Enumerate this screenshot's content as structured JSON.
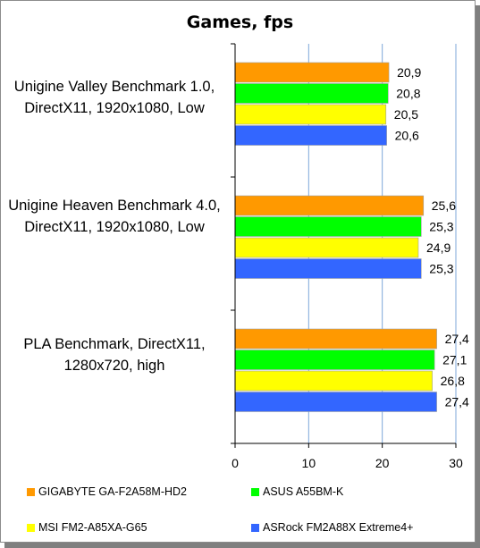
{
  "chart_data": {
    "type": "bar",
    "orientation": "horizontal",
    "title": "Games,  fps",
    "categories": [
      "Unigine Valley Benchmark 1.0, DirectX11, 1920x1080, Low",
      "Unigine Heaven Benchmark 4.0, DirectX11, 1920x1080, Low",
      "PLA Benchmark, DirectX11, 1280x720, high"
    ],
    "series": [
      {
        "name": "GIGABYTE GA-F2A58M-HD2",
        "color": "#ff9900",
        "values": [
          20.9,
          25.6,
          27.4
        ],
        "labels": [
          "20,9",
          "25,6",
          "27,4"
        ]
      },
      {
        "name": "ASUS A55BM-K",
        "color": "#00ff00",
        "values": [
          20.8,
          25.3,
          27.1
        ],
        "labels": [
          "20,8",
          "25,3",
          "27,1"
        ]
      },
      {
        "name": "MSI FM2-A85XA-G65",
        "color": "#ffff00",
        "values": [
          20.5,
          24.9,
          26.8
        ],
        "labels": [
          "20,5",
          "24,9",
          "26,8"
        ]
      },
      {
        "name": "ASRock FM2A88X Extreme4+",
        "color": "#3366ff",
        "values": [
          20.6,
          25.3,
          27.4
        ],
        "labels": [
          "20,6",
          "25,3",
          "27,4"
        ]
      }
    ],
    "xlim": [
      0,
      30
    ],
    "xticks": [
      "0",
      "10",
      "20",
      "30"
    ],
    "grid": "vertical",
    "legend": "bottom"
  }
}
